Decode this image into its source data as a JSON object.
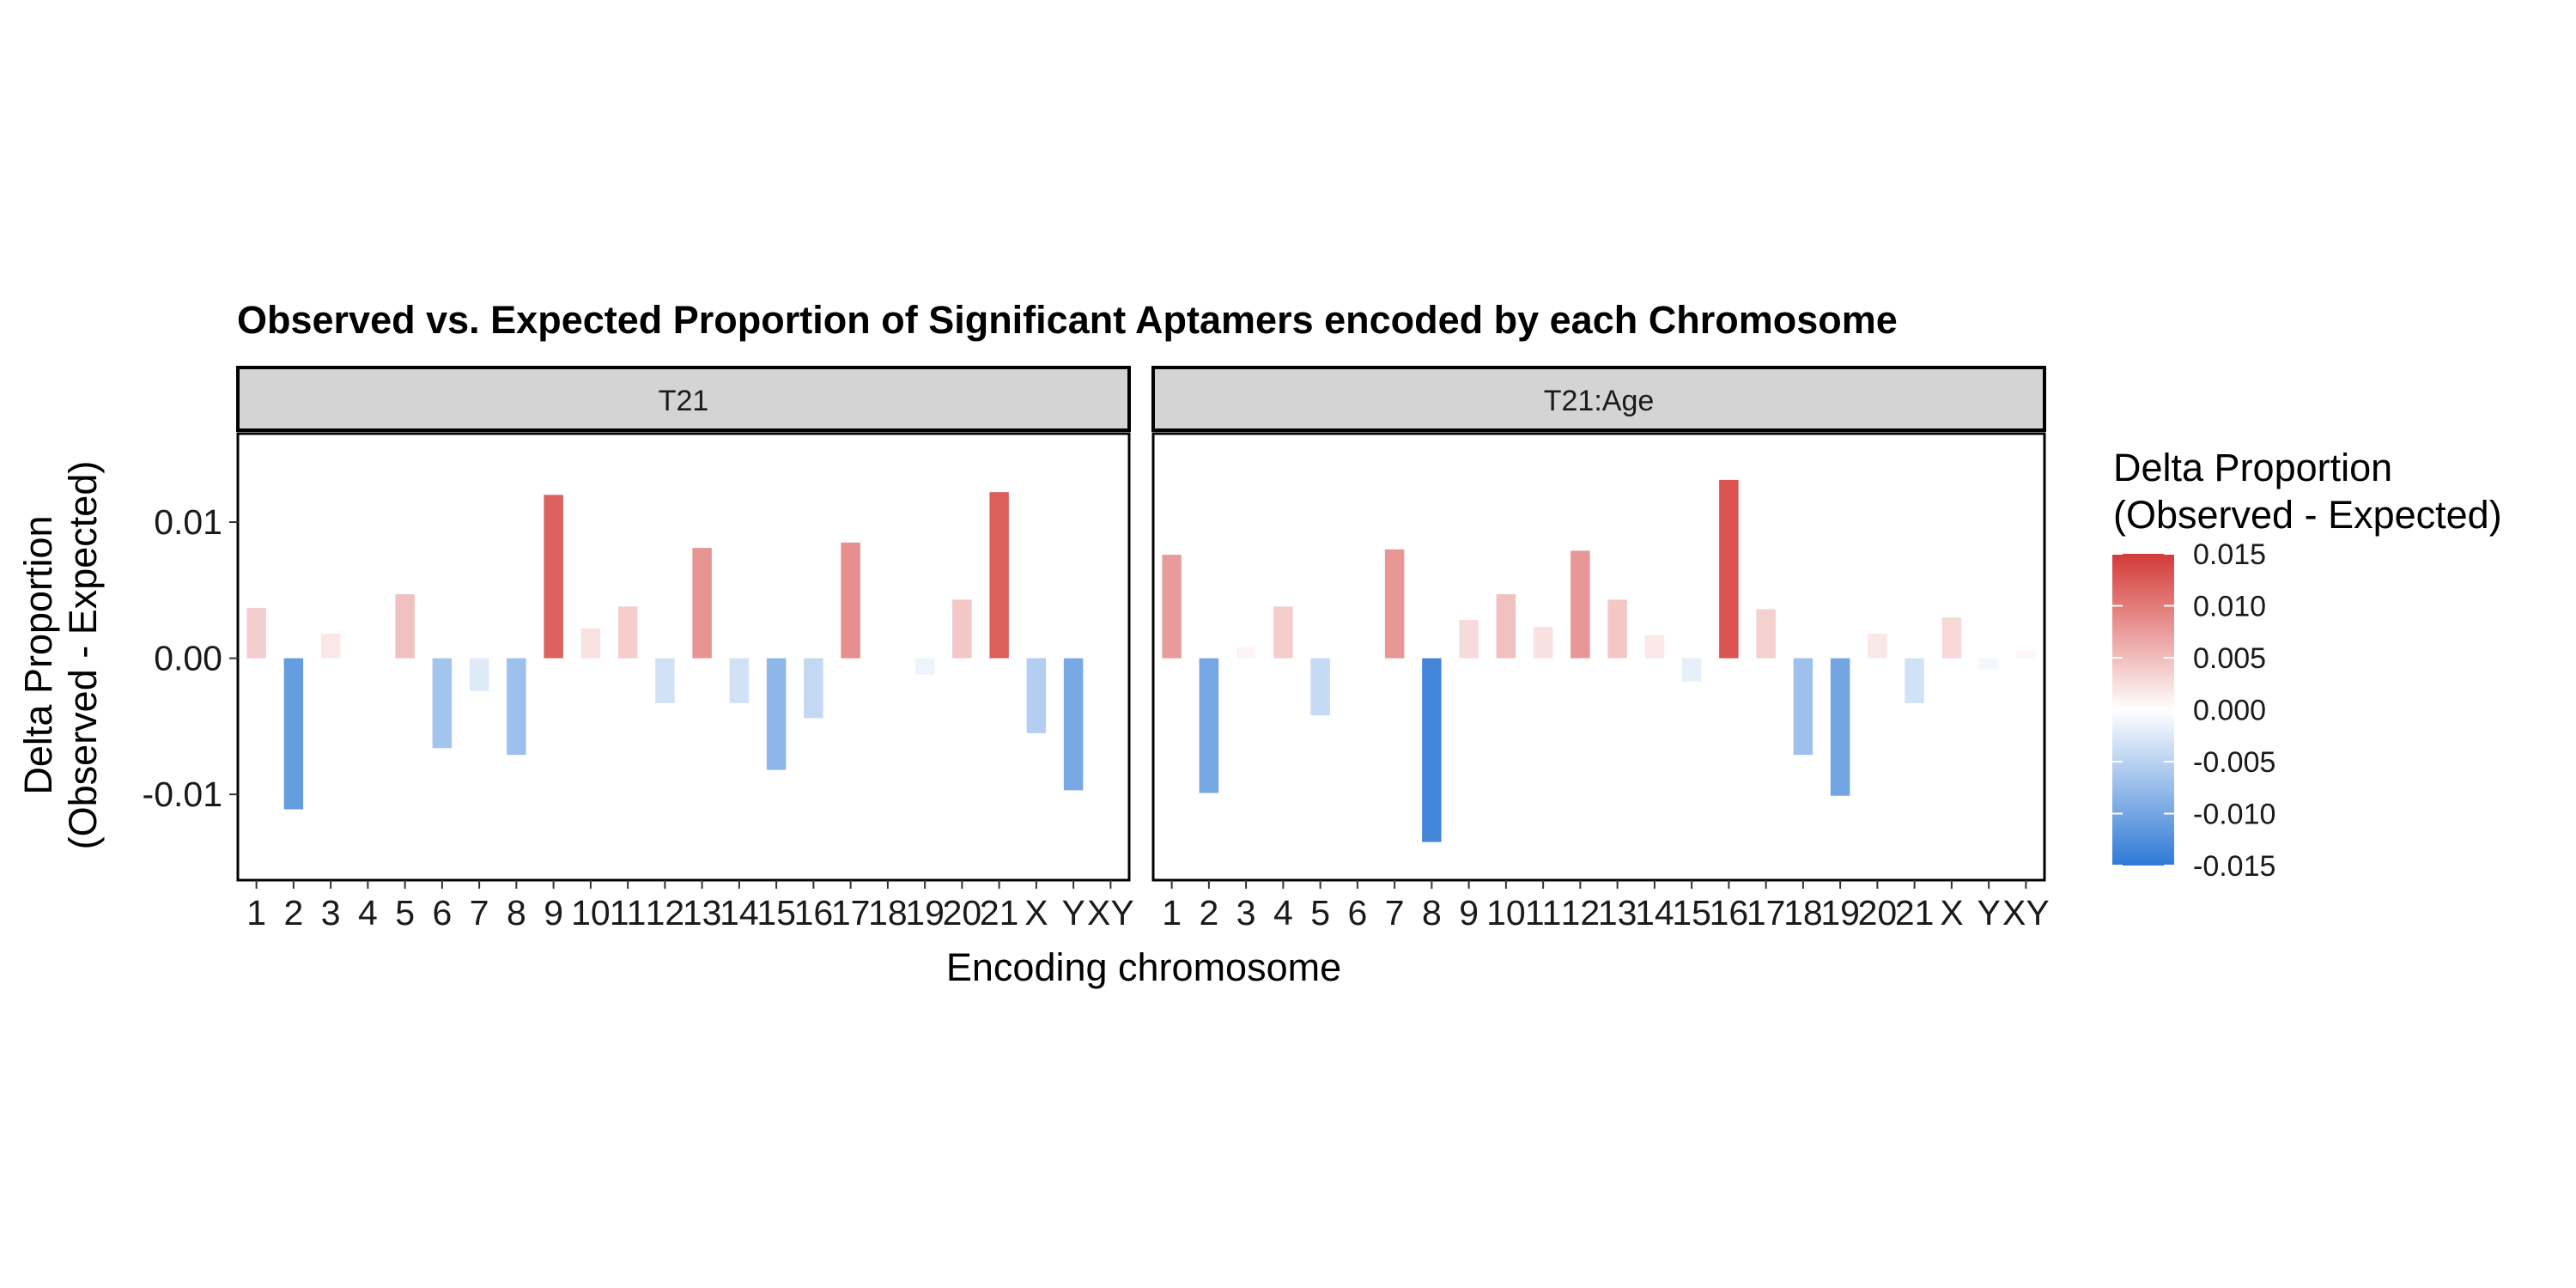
{
  "chart_data": {
    "type": "bar",
    "title": "Observed vs. Expected Proportion of Significant Aptamers encoded by each Chromosome",
    "xlabel": "Encoding chromosome",
    "ylabel_lines": [
      "Delta Proportion",
      "(Observed - Expected)"
    ],
    "categories": [
      "1",
      "2",
      "3",
      "4",
      "5",
      "6",
      "7",
      "8",
      "9",
      "10",
      "11",
      "12",
      "13",
      "14",
      "15",
      "16",
      "17",
      "18",
      "19",
      "20",
      "21",
      "X",
      "Y",
      "XY"
    ],
    "ylim": [
      -0.0163,
      0.0165
    ],
    "y_ticks": [
      -0.01,
      0.0,
      0.01
    ],
    "y_tick_labels": [
      "-0.01",
      "0.00",
      "0.01"
    ],
    "grid": false,
    "facets": [
      {
        "label": "T21",
        "values": [
          0.0037,
          -0.0111,
          0.0018,
          0.0,
          0.0047,
          -0.0066,
          -0.0024,
          -0.0071,
          0.012,
          0.0022,
          0.0038,
          -0.0033,
          0.0081,
          -0.0033,
          -0.0082,
          -0.0044,
          0.0085,
          0.0,
          -0.0012,
          0.0043,
          0.0122,
          -0.0055,
          -0.0097,
          0.0
        ]
      },
      {
        "label": "T21:Age",
        "values": [
          0.0076,
          -0.0099,
          0.0008,
          0.0038,
          -0.0042,
          0.0,
          0.008,
          -0.0135,
          0.0028,
          0.0047,
          0.0023,
          0.0079,
          0.0043,
          0.0017,
          -0.0017,
          0.0131,
          0.0036,
          -0.0071,
          -0.0101,
          0.0018,
          -0.0033,
          0.003,
          -0.0008,
          0.0006
        ]
      }
    ],
    "legend": {
      "title_lines": [
        "Delta Proportion",
        "(Observed - Expected)"
      ],
      "placement": "right",
      "range": [
        -0.015,
        0.015
      ],
      "ticks": [
        0.015,
        0.01,
        0.005,
        0.0,
        -0.005,
        -0.01,
        -0.015
      ],
      "tick_labels": [
        "0.015",
        "0.010",
        "0.005",
        "0.000",
        "-0.005",
        "-0.010",
        "-0.015"
      ]
    },
    "colors": {
      "high": "#d33a37",
      "mid": "#ffffff",
      "low": "#2f7ad6",
      "strip_fill": "#d4d4d4",
      "panel_border": "#000000"
    }
  }
}
